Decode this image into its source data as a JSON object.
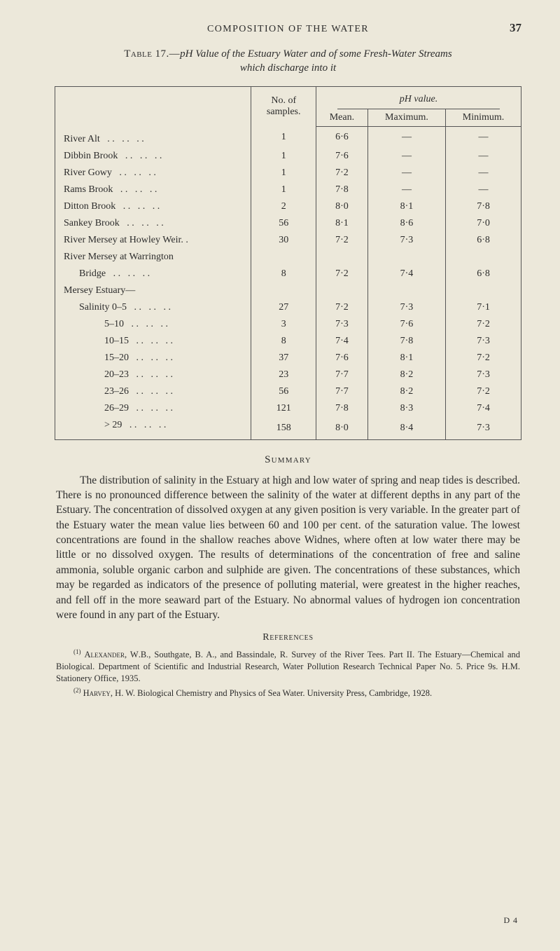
{
  "colors": {
    "page_bg": "#ece8da",
    "text": "#2c2c2c",
    "rule": "#555555"
  },
  "typography": {
    "body_family": "Times New Roman, serif",
    "body_size_pt": 12,
    "caption_size_pt": 11,
    "table_size_pt": 10,
    "ref_size_pt": 9
  },
  "header": {
    "running_title": "COMPOSITION OF THE WATER",
    "page_number": "37"
  },
  "table": {
    "caption_label": "Table 17.—",
    "caption_title_prefix": "p",
    "caption_title_rest": "H Value of the Estuary Water and of some Fresh-Water Streams",
    "caption_sub": "which discharge into it",
    "col_labels": {
      "samples": "No. of\nsamples.",
      "ph_value": "pH value.",
      "mean": "Mean.",
      "max": "Maximum.",
      "min": "Minimum."
    },
    "rows": [
      {
        "label": "River Alt",
        "dots": true,
        "indent": 0,
        "samples": "1",
        "mean": "6·6",
        "max": "—",
        "min": "—"
      },
      {
        "label": "Dibbin Brook",
        "dots": true,
        "indent": 0,
        "samples": "1",
        "mean": "7·6",
        "max": "—",
        "min": "—"
      },
      {
        "label": "River Gowy",
        "dots": true,
        "indent": 0,
        "samples": "1",
        "mean": "7·2",
        "max": "—",
        "min": "—"
      },
      {
        "label": "Rams Brook",
        "dots": true,
        "indent": 0,
        "samples": "1",
        "mean": "7·8",
        "max": "—",
        "min": "—"
      },
      {
        "label": "Ditton Brook",
        "dots": true,
        "indent": 0,
        "samples": "2",
        "mean": "8·0",
        "max": "8·1",
        "min": "7·8"
      },
      {
        "label": "Sankey Brook",
        "dots": true,
        "indent": 0,
        "samples": "56",
        "mean": "8·1",
        "max": "8·6",
        "min": "7·0"
      },
      {
        "label": "River Mersey at Howley Weir. .",
        "dots": false,
        "indent": 0,
        "samples": "30",
        "mean": "7·2",
        "max": "7·3",
        "min": "6·8"
      },
      {
        "label": "River Mersey at Warrington",
        "dots": false,
        "indent": 0,
        "samples": "",
        "mean": "",
        "max": "",
        "min": ""
      },
      {
        "label": "Bridge",
        "dots": true,
        "indent": 1,
        "samples": "8",
        "mean": "7·2",
        "max": "7·4",
        "min": "6·8"
      },
      {
        "label": "Mersey Estuary—",
        "dots": false,
        "indent": 0,
        "samples": "",
        "mean": "",
        "max": "",
        "min": ""
      },
      {
        "label": "Salinity 0–5",
        "dots": true,
        "indent": 1,
        "samples": "27",
        "mean": "7·2",
        "max": "7·3",
        "min": "7·1"
      },
      {
        "label": "5–10",
        "dots": true,
        "indent": 2,
        "samples": "3",
        "mean": "7·3",
        "max": "7·6",
        "min": "7·2"
      },
      {
        "label": "10–15",
        "dots": true,
        "indent": 2,
        "samples": "8",
        "mean": "7·4",
        "max": "7·8",
        "min": "7·3"
      },
      {
        "label": "15–20",
        "dots": true,
        "indent": 2,
        "samples": "37",
        "mean": "7·6",
        "max": "8·1",
        "min": "7·2"
      },
      {
        "label": "20–23",
        "dots": true,
        "indent": 2,
        "samples": "23",
        "mean": "7·7",
        "max": "8·2",
        "min": "7·3"
      },
      {
        "label": "23–26",
        "dots": true,
        "indent": 2,
        "samples": "56",
        "mean": "7·7",
        "max": "8·2",
        "min": "7·2"
      },
      {
        "label": "26–29",
        "dots": true,
        "indent": 2,
        "samples": "121",
        "mean": "7·8",
        "max": "8·3",
        "min": "7·4"
      },
      {
        "label": "> 29",
        "dots": true,
        "indent": 2,
        "samples": "158",
        "mean": "8·0",
        "max": "8·4",
        "min": "7·3"
      }
    ]
  },
  "summary": {
    "heading": "Summary",
    "body": "The distribution of salinity in the Estuary at high and low water of spring and neap tides is described. There is no pronounced difference between the salinity of the water at different depths in any part of the Estuary. The concentration of dissolved oxygen at any given position is very variable. In the greater part of the Estuary water the mean value lies between 60 and 100 per cent. of the saturation value. The lowest concentrations are found in the shallow reaches above Widnes, where often at low water there may be little or no dissolved oxygen. The results of determinations of the concentration of free and saline ammonia, soluble organic carbon and sulphide are given. The concentrations of these substances, which may be regarded as indicators of the presence of polluting material, were greatest in the higher reaches, and fell off in the more seaward part of the Estuary. No abnormal values of hydrogen ion concentration were found in any part of the Estuary."
  },
  "references": {
    "heading": "References",
    "items": [
      {
        "sup": "(1)",
        "text": "Alexander, W.B., Southgate, B. A., and Bassindale, R. Survey of the River Tees. Part II. The Estuary—Chemical and Biological. Department of Scientific and Industrial Research, Water Pollution Research Technical Paper No. 5. Price 9s. H.M. Stationery Office, 1935."
      },
      {
        "sup": "(2)",
        "text": "Harvey, H. W. Biological Chemistry and Physics of Sea Water. University Press, Cambridge, 1928."
      }
    ]
  },
  "signature": "D 4"
}
